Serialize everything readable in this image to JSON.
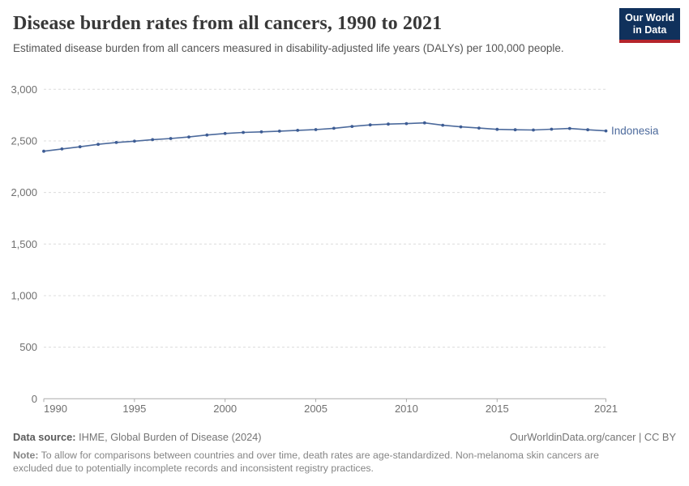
{
  "header": {
    "title": "Disease burden rates from all cancers, 1990 to 2021",
    "subtitle": "Estimated disease burden from all cancers measured in disability-adjusted life years (DALYs) per 100,000 people.",
    "logo_line1": "Our World",
    "logo_line2": "in Data"
  },
  "chart_data": {
    "type": "line",
    "title": "Disease burden rates from all cancers, 1990 to 2021",
    "unit": "DALYs per 100,000 people",
    "x": [
      1990,
      1991,
      1992,
      1993,
      1994,
      1995,
      1996,
      1997,
      1998,
      1999,
      2000,
      2001,
      2002,
      2003,
      2004,
      2005,
      2006,
      2007,
      2008,
      2009,
      2010,
      2011,
      2012,
      2013,
      2014,
      2015,
      2016,
      2017,
      2018,
      2019,
      2020,
      2021
    ],
    "series": [
      {
        "name": "Indonesia",
        "color": "#4c6a9c",
        "values": [
          2400,
          2422,
          2443,
          2467,
          2485,
          2497,
          2512,
          2523,
          2538,
          2557,
          2572,
          2582,
          2588,
          2595,
          2603,
          2610,
          2622,
          2640,
          2655,
          2663,
          2668,
          2675,
          2652,
          2636,
          2625,
          2612,
          2608,
          2606,
          2614,
          2621,
          2608,
          2597
        ]
      }
    ],
    "xlim": [
      1990,
      2021
    ],
    "ylim": [
      0,
      3000
    ],
    "yticks": [
      0,
      500,
      1000,
      1500,
      2000,
      2500,
      3000
    ],
    "ytick_labels": [
      "0",
      "500",
      "1,000",
      "1,500",
      "2,000",
      "2,500",
      "3,000"
    ],
    "xticks": [
      1990,
      1995,
      2000,
      2005,
      2010,
      2015,
      2021
    ],
    "xtick_labels": [
      "1990",
      "1995",
      "2000",
      "2005",
      "2010",
      "2015",
      "2021"
    ],
    "grid": "horizontal-dashed",
    "legend_position": "end-of-line",
    "markers": true
  },
  "footer": {
    "datasource_label": "Data source:",
    "datasource_value": " IHME, Global Burden of Disease (2024)",
    "citation": "OurWorldinData.org/cancer | CC BY",
    "note_label": "Note:",
    "note_text": " To allow for comparisons between countries and over time, death rates are age-standardized. Non-melanoma skin cancers are excluded due to potentially incomplete records and inconsistent registry practices."
  },
  "colors": {
    "line": "#4c6a9c",
    "point": "#3d5c94",
    "series_label": "#4c6a9c",
    "grid": "#dcdcdc",
    "axis": "#ababab",
    "tick_label": "#707070",
    "logo_bg": "#10315c",
    "logo_stripe": "#b5252c",
    "title": "#383838",
    "subtitle": "#555555"
  }
}
